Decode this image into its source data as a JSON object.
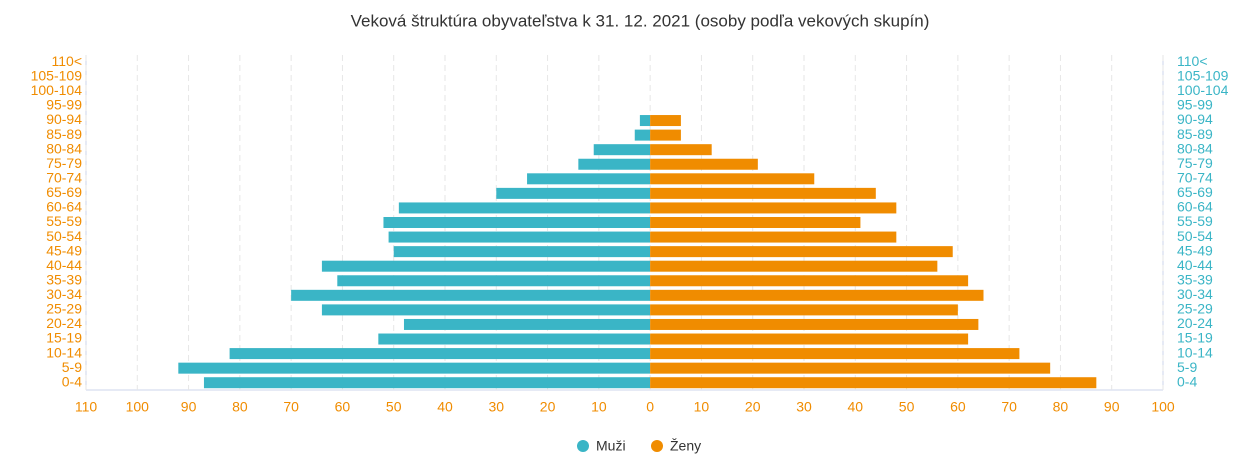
{
  "chart_data": {
    "type": "pyramid",
    "title": "Veková štruktúra obyvateľstva k 31. 12. 2021 (osoby podľa vekových skupín)",
    "categories": [
      "0-4",
      "5-9",
      "10-14",
      "15-19",
      "20-24",
      "25-29",
      "30-34",
      "35-39",
      "40-44",
      "45-49",
      "50-54",
      "55-59",
      "60-64",
      "65-69",
      "70-74",
      "75-79",
      "80-84",
      "85-89",
      "90-94",
      "95-99",
      "100-104",
      "105-109",
      "110<"
    ],
    "series": [
      {
        "name": "Muži",
        "color": "#3ab5c6",
        "values": [
          -87,
          -92,
          -82,
          -53,
          -48,
          -64,
          -70,
          -61,
          -64,
          -50,
          -51,
          -52,
          -49,
          -30,
          -24,
          -14,
          -11,
          -3,
          -2,
          0,
          0,
          0,
          0
        ]
      },
      {
        "name": "Ženy",
        "color": "#f08c00",
        "values": [
          87,
          78,
          72,
          62,
          64,
          60,
          65,
          62,
          56,
          59,
          48,
          41,
          48,
          44,
          32,
          21,
          12,
          6,
          6,
          0,
          0,
          0,
          0
        ]
      }
    ],
    "xlim": [
      -110,
      100
    ],
    "xticks": [
      {
        "value": -110,
        "label": "110"
      },
      {
        "value": -100,
        "label": "100"
      },
      {
        "value": -90,
        "label": "90"
      },
      {
        "value": -80,
        "label": "80"
      },
      {
        "value": -70,
        "label": "70"
      },
      {
        "value": -60,
        "label": "60"
      },
      {
        "value": -50,
        "label": "50"
      },
      {
        "value": -40,
        "label": "40"
      },
      {
        "value": -30,
        "label": "30"
      },
      {
        "value": -20,
        "label": "20"
      },
      {
        "value": -10,
        "label": "10"
      },
      0,
      10,
      20,
      30,
      40,
      50,
      60,
      70,
      80,
      90,
      100
    ],
    "grid": true
  }
}
